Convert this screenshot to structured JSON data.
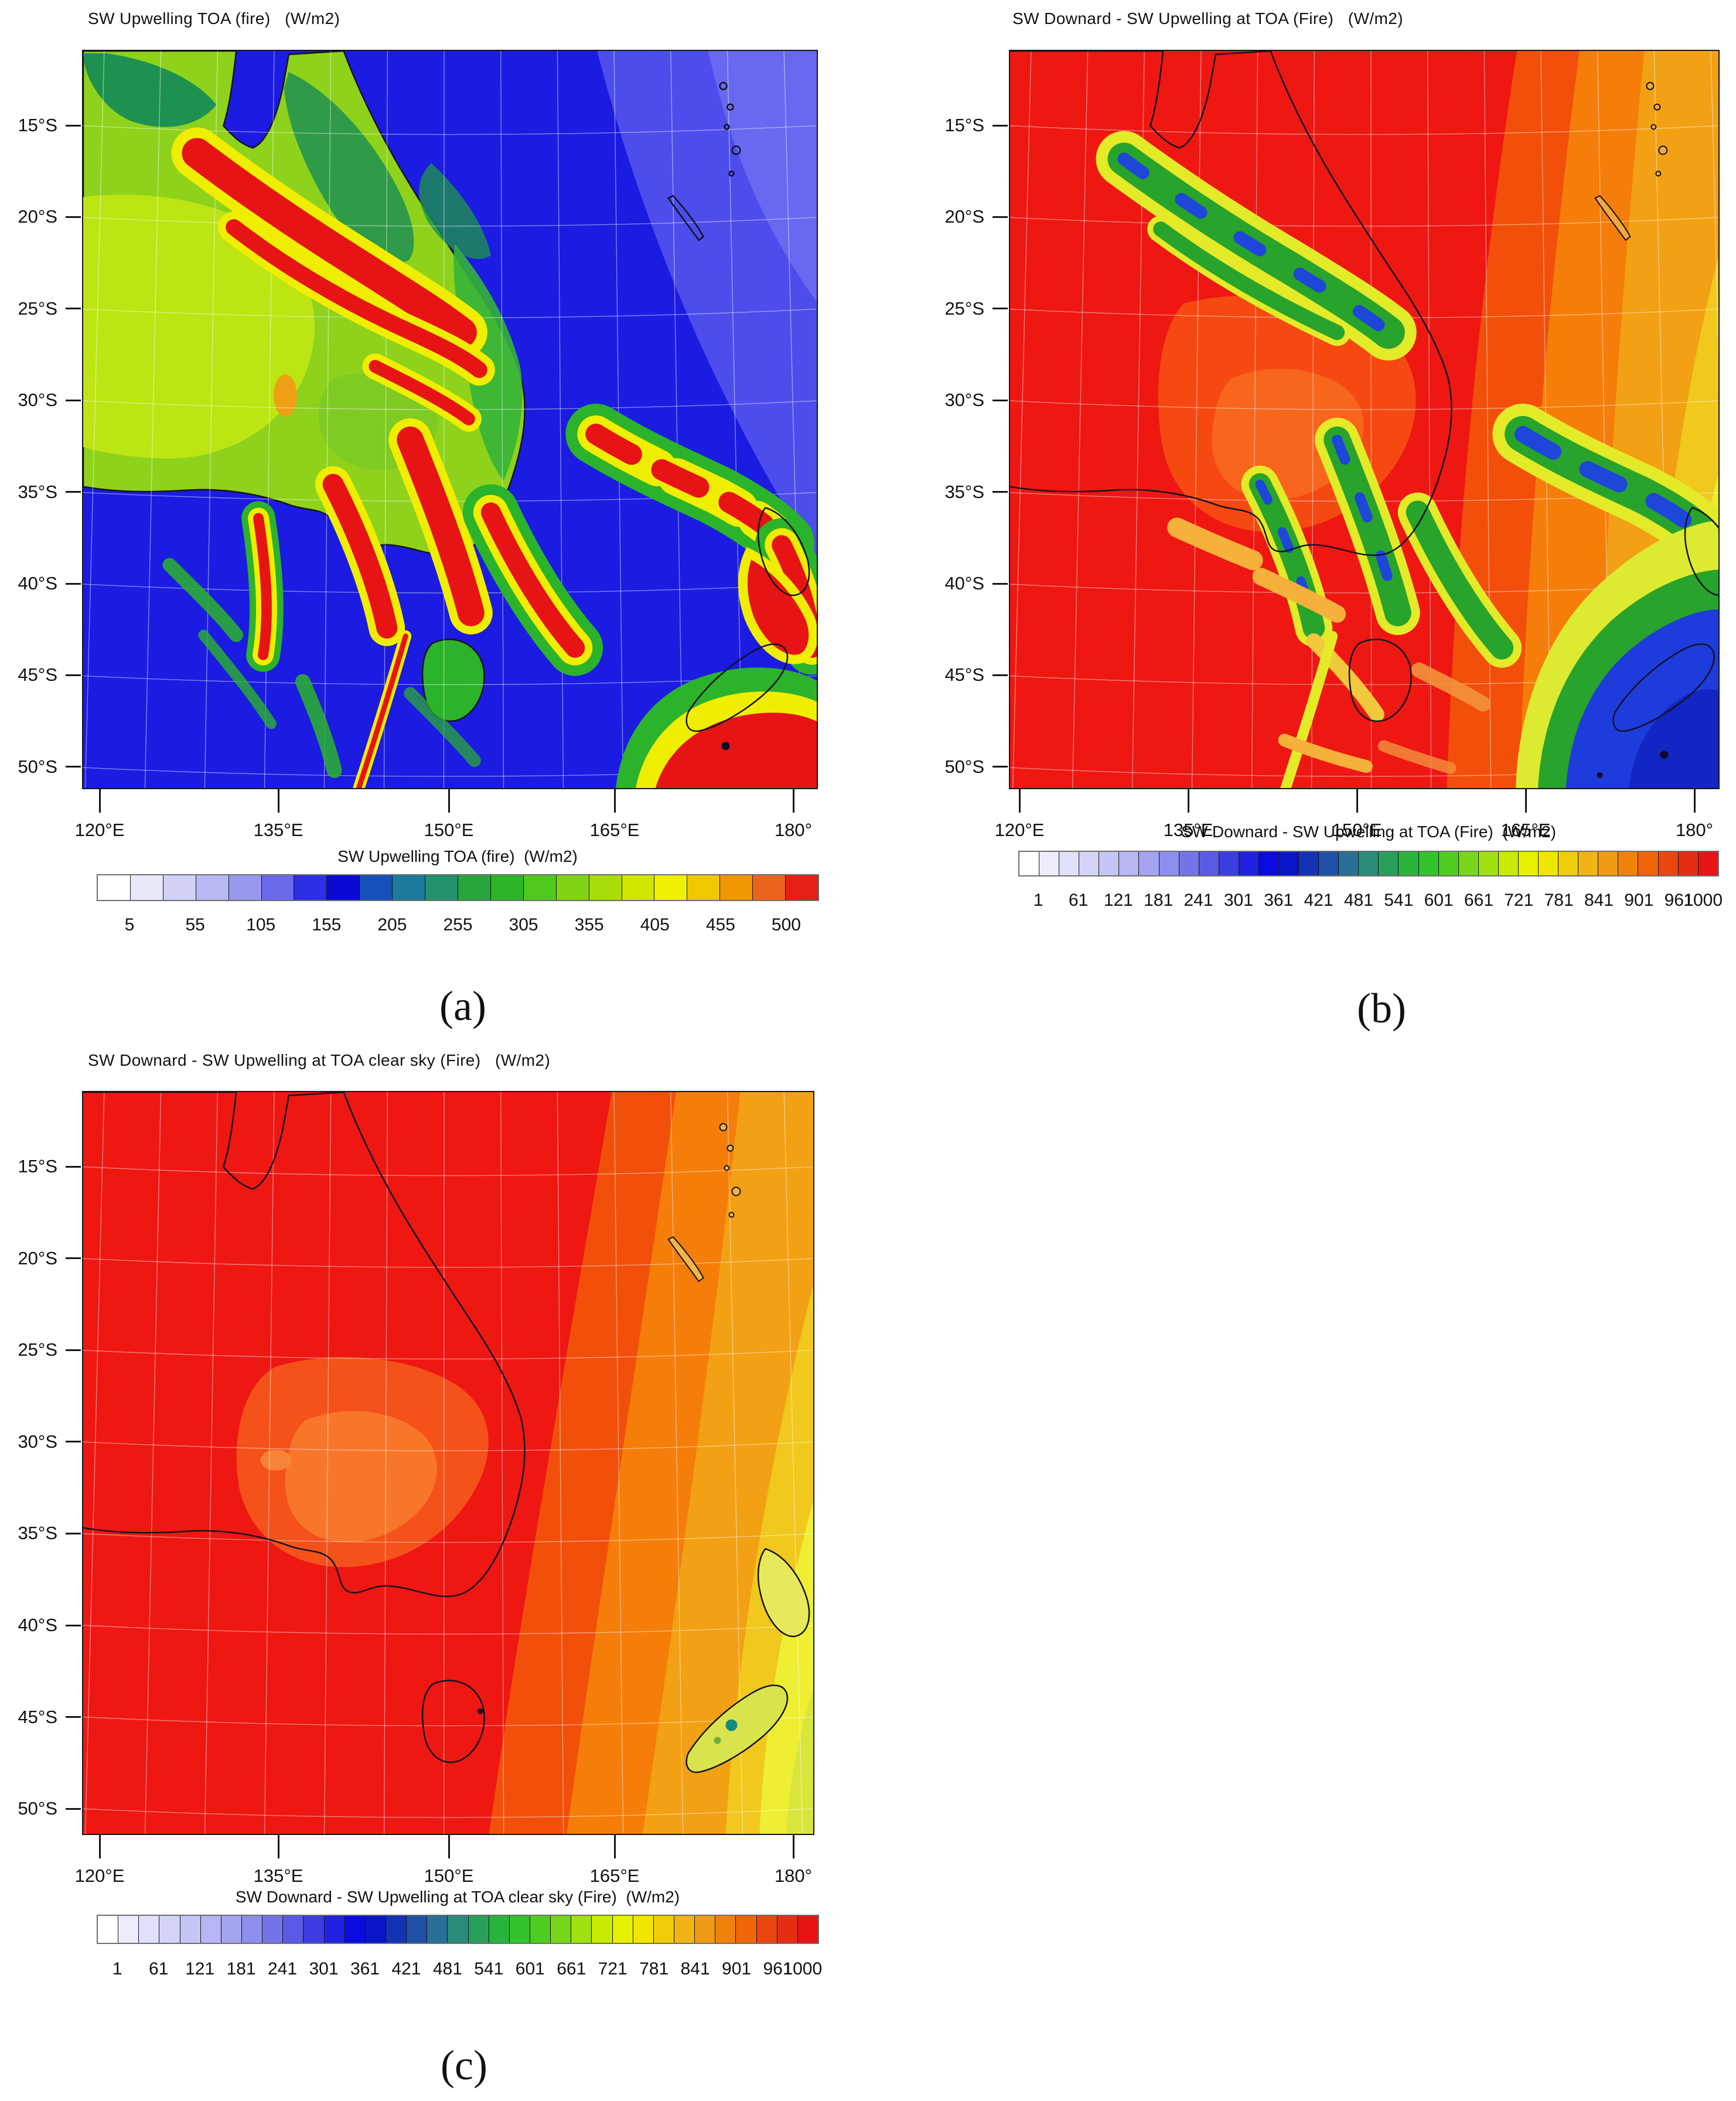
{
  "figure": {
    "background": "#ffffff",
    "panels": [
      {
        "id": "a",
        "label": "(a)",
        "title": "SW Upwelling TOA (fire)   (W/m2)",
        "x_ticks": [
          "120°E",
          "135°E",
          "150°E",
          "165°E",
          "180°"
        ],
        "y_ticks": [
          "15°S",
          "20°S",
          "25°S",
          "30°S",
          "35°S",
          "40°S",
          "45°S",
          "50°S"
        ],
        "colorbar": {
          "title": "SW Upwelling TOA (fire)  (W/m2)",
          "labels": [
            "5",
            "55",
            "105",
            "155",
            "205",
            "255",
            "305",
            "355",
            "405",
            "455",
            "500"
          ],
          "colors": [
            "#ffffff",
            "#e8e8fb",
            "#d2d2f8",
            "#b8b8f4",
            "#9898ee",
            "#6a6ae8",
            "#2e2ee4",
            "#0a0ad2",
            "#1450b9",
            "#1e7a9b",
            "#23906e",
            "#28a53c",
            "#2db428",
            "#50c81e",
            "#82d214",
            "#aadc0a",
            "#d2e600",
            "#f0f000",
            "#f0c800",
            "#f09600",
            "#eb641e",
            "#e61e14"
          ]
        }
      },
      {
        "id": "b",
        "label": "(b)",
        "title": "SW Downard - SW Upwelling at TOA (Fire)   (W/m2)",
        "x_ticks": [
          "120°E",
          "135°E",
          "150°E",
          "165°E",
          "180°"
        ],
        "y_ticks": [
          "15°S",
          "20°S",
          "25°S",
          "30°S",
          "35°S",
          "40°S",
          "45°S",
          "50°S"
        ],
        "colorbar": {
          "title": "SW Downard - SW Upwelling at TOA (Fire)  (W/m2)",
          "labels": [
            "1",
            "61",
            "121",
            "181",
            "241",
            "301",
            "361",
            "421",
            "481",
            "541",
            "601",
            "661",
            "721",
            "781",
            "841",
            "901",
            "961",
            "1000"
          ],
          "colors": [
            "#ffffff",
            "#ececfc",
            "#e0e0fa",
            "#d4d4f8",
            "#c6c6f6",
            "#b6b6f3",
            "#a4a4f0",
            "#8e8eec",
            "#7474e9",
            "#5a5ae6",
            "#3c3ce3",
            "#2020e0",
            "#0a0ae0",
            "#0a14c8",
            "#1432b4",
            "#1e50a5",
            "#287096",
            "#288c78",
            "#28a05a",
            "#28b43c",
            "#32c32d",
            "#50cd23",
            "#78d719",
            "#a0e10f",
            "#c8eb05",
            "#e6f000",
            "#f0e600",
            "#f0cd0a",
            "#f0b414",
            "#f09b14",
            "#f0820a",
            "#f0640a",
            "#eb460f",
            "#e62d14",
            "#e61414"
          ]
        }
      },
      {
        "id": "c",
        "label": "(c)",
        "title": "SW Downard - SW Upwelling at TOA clear sky (Fire)   (W/m2)",
        "x_ticks": [
          "120°E",
          "135°E",
          "150°E",
          "165°E",
          "180°"
        ],
        "y_ticks": [
          "15°S",
          "20°S",
          "25°S",
          "30°S",
          "35°S",
          "40°S",
          "45°S",
          "50°S"
        ],
        "colorbar": {
          "title": "SW Downard - SW Upwelling at TOA clear sky (Fire)  (W/m2)",
          "labels": [
            "1",
            "61",
            "121",
            "181",
            "241",
            "301",
            "361",
            "421",
            "481",
            "541",
            "601",
            "661",
            "721",
            "781",
            "841",
            "901",
            "961",
            "1000"
          ],
          "colors": [
            "#ffffff",
            "#ececfc",
            "#e0e0fa",
            "#d4d4f8",
            "#c6c6f6",
            "#b6b6f3",
            "#a4a4f0",
            "#8e8eec",
            "#7474e9",
            "#5a5ae6",
            "#3c3ce3",
            "#2020e0",
            "#0a0ae0",
            "#0a14c8",
            "#1432b4",
            "#1e50a5",
            "#287096",
            "#288c78",
            "#28a05a",
            "#28b43c",
            "#32c32d",
            "#50cd23",
            "#78d719",
            "#a0e10f",
            "#c8eb05",
            "#e6f000",
            "#f0e600",
            "#f0cd0a",
            "#f0b414",
            "#f09b14",
            "#f0820a",
            "#f0640a",
            "#eb460f",
            "#e62d14",
            "#e61414"
          ]
        }
      }
    ]
  },
  "chart_data": [
    {
      "type": "heatmap",
      "panel": "(a)",
      "title": "SW Upwelling TOA (fire)   (W/m2)",
      "units": "W/m2",
      "x_axis": {
        "label": "longitude",
        "ticks": [
          "120°E",
          "135°E",
          "150°E",
          "165°E",
          "180°"
        ],
        "range_deg_east": [
          119,
          183
        ]
      },
      "y_axis": {
        "label": "latitude",
        "ticks": [
          "15°S",
          "20°S",
          "25°S",
          "30°S",
          "35°S",
          "40°S",
          "45°S",
          "50°S"
        ],
        "range_deg": [
          -51.5,
          -11
        ]
      },
      "colorbar": {
        "ticks": [
          5,
          55,
          105,
          155,
          205,
          255,
          305,
          355,
          405,
          455,
          500
        ],
        "interval": 25,
        "range": [
          0,
          525
        ]
      },
      "legend_position": "bottom",
      "grid": true,
      "features": [
        "Ocean background deep blue, roughly 100-150 W/m2",
        "Lighter blue-violet sector in the north-east corner of the domain",
        "Australian landmass green to yellow-green, roughly 230-330 W/m2, with darker green patches in the tropical north",
        "Bright red plume band (>= 500 W/m2) streaking south-east from about 18S,133E across Queensland with yellow fringes",
        "Red plume clusters over NSW/Victoria and a broken chain across the Tasman Sea toward New Zealand",
        "Large red high-albedo cloud mass south-east of New Zealand near 47S,170E",
        "Thin elongated red streak in the Southern Ocean near 140E and small orange spot in central Australia"
      ]
    },
    {
      "type": "heatmap",
      "panel": "(b)",
      "title": "SW Downard - SW Upwelling at TOA (Fire)   (W/m2)",
      "units": "W/m2",
      "x_axis": {
        "label": "longitude",
        "ticks": [
          "120°E",
          "135°E",
          "150°E",
          "165°E",
          "180°"
        ],
        "range_deg_east": [
          119,
          183
        ]
      },
      "y_axis": {
        "label": "latitude",
        "ticks": [
          "15°S",
          "20°S",
          "25°S",
          "30°S",
          "35°S",
          "40°S",
          "45°S",
          "50°S"
        ],
        "range_deg": [
          -51.5,
          -11
        ]
      },
      "colorbar": {
        "ticks": [
          1,
          61,
          121,
          181,
          241,
          301,
          361,
          421,
          481,
          541,
          601,
          661,
          721,
          781,
          841,
          901,
          961,
          1000
        ],
        "interval": 30,
        "range": [
          0,
          1030
        ]
      },
      "legend_position": "bottom",
      "grid": true,
      "features": [
        "Field predominantly red, net downward flux about 950-1000 W/m2",
        "Net flux decreases eastward: dark-orange, orange, gold and yellow bands toward 180°",
        "Green filaments with dark-blue cores (about 300-600 W/m2) where fire plumes and clouds reduce the net flux, mirroring panel (a) plumes",
        "Large blue-green minimum south-east of New Zealand",
        "Slightly lighter red-orange patch over central Australia and pale orange streaks near South Australia and Tasmania",
        "New Caledonia and Vanuatu islands outlined in the upper right"
      ]
    },
    {
      "type": "heatmap",
      "panel": "(c)",
      "title": "SW Downard - SW Upwelling at TOA clear sky (Fire)   (W/m2)",
      "units": "W/m2",
      "x_axis": {
        "label": "longitude",
        "ticks": [
          "120°E",
          "135°E",
          "150°E",
          "165°E",
          "180°"
        ],
        "range_deg_east": [
          119,
          183
        ]
      },
      "y_axis": {
        "label": "latitude",
        "ticks": [
          "15°S",
          "20°S",
          "25°S",
          "30°S",
          "35°S",
          "40°S",
          "45°S",
          "50°S"
        ],
        "range_deg": [
          -51.5,
          -11
        ]
      },
      "colorbar": {
        "ticks": [
          1,
          61,
          121,
          181,
          241,
          301,
          361,
          421,
          481,
          541,
          601,
          661,
          721,
          781,
          841,
          901,
          961,
          1000
        ],
        "interval": 30,
        "range": [
          0,
          1030
        ]
      },
      "legend_position": "bottom",
      "grid": true,
      "features": [
        "Smooth clear-sky field: uniform red over most of the domain",
        "Concentric dark-orange, orange, gold, yellow and yellow-green bands of decreasing net flux toward the south-east corner (solar zenith gradient)",
        "No plume signatures; only coastlines drawn",
        "Faint lighter-orange surface patches over central/eastern Australia",
        "New Zealand interior in yellow-green with a small teal spot on the South Island"
      ]
    }
  ]
}
